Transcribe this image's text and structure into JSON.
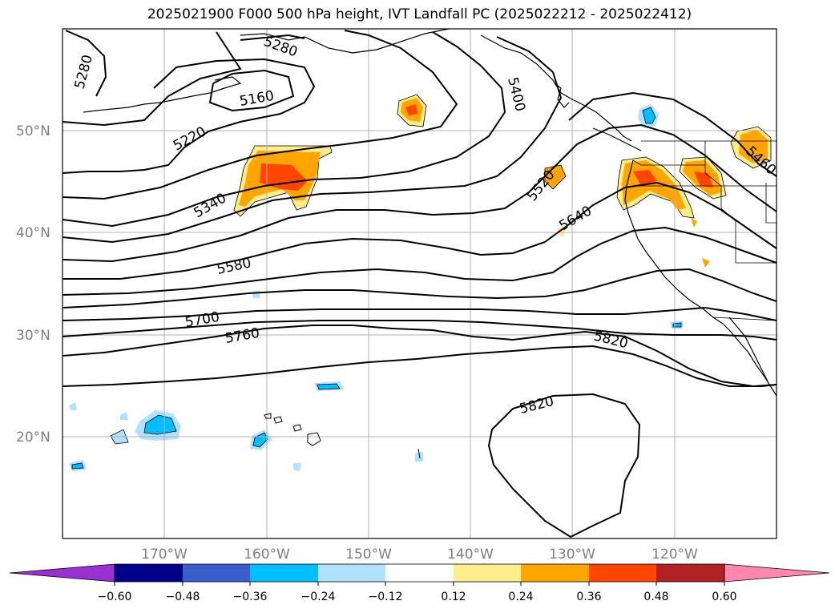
{
  "title": "2025021900 F000 500 hPa height, IVT Landfall PC (2025022212 - 2025022412)",
  "map": {
    "lon_range": [
      -180,
      -110
    ],
    "lat_range": [
      10,
      60
    ],
    "gridlines": true,
    "lat_labels": [
      "50°N",
      "40°N",
      "30°N",
      "20°N"
    ],
    "lon_labels": [
      "170°W",
      "160°W",
      "150°W",
      "140°W",
      "130°W",
      "120°W"
    ]
  },
  "contours": {
    "field": "500 hPa height",
    "labels": [
      "5160",
      "5220",
      "5280",
      "5280",
      "5340",
      "5400",
      "5460",
      "5520",
      "5580",
      "5640",
      "5700",
      "5760",
      "5820",
      "5820"
    ]
  },
  "colorbar": {
    "ticks": [
      "−0.60",
      "−0.48",
      "−0.36",
      "−0.24",
      "−0.12",
      "0.12",
      "0.24",
      "0.36",
      "0.48",
      "0.60"
    ],
    "colors": [
      "#9b30d0",
      "#00008b",
      "#3a5fcd",
      "#00bfff",
      "#b0e2ff",
      "#ffffff",
      "#ffec8b",
      "#ffa500",
      "#ff4500",
      "#b22222",
      "#ff88aa"
    ]
  },
  "shading_colors": {
    "light_orange": "#ffec8b",
    "orange": "#ffa500",
    "red_orange": "#ff4500",
    "light_blue": "#b0e2ff",
    "blue": "#00bfff"
  }
}
